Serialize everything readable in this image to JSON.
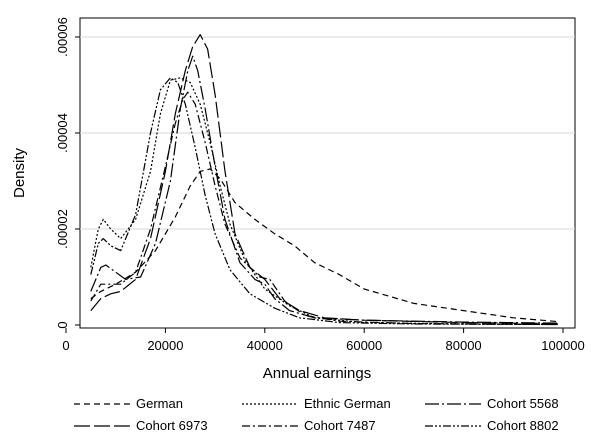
{
  "chart_data": {
    "type": "line",
    "xlabel": "Annual earnings",
    "ylabel": "Density",
    "xlim": [
      0,
      100000
    ],
    "ylim": [
      0,
      6e-05
    ],
    "x_ticks": [
      0,
      20000,
      40000,
      60000,
      80000,
      100000
    ],
    "x_tick_labels": [
      "0",
      "20000",
      "40000",
      "60000",
      "80000",
      "100000"
    ],
    "y_ticks": [
      0,
      2e-05,
      4e-05,
      6e-05
    ],
    "y_tick_labels": [
      "0",
      ".00002",
      ".00004",
      ".00006"
    ],
    "grid": true,
    "legend_position": "bottom",
    "series": [
      {
        "name": "German",
        "dash": "6,4",
        "points": [
          [
            5000,
            5.5e-06
          ],
          [
            7000,
            7e-06
          ],
          [
            10000,
            8.5e-06
          ],
          [
            14000,
            1.1e-05
          ],
          [
            18000,
            1.55e-05
          ],
          [
            22000,
            2.25e-05
          ],
          [
            25000,
            2.9e-05
          ],
          [
            27000,
            3.2e-05
          ],
          [
            29000,
            3.25e-05
          ],
          [
            31000,
            3.05e-05
          ],
          [
            34000,
            2.55e-05
          ],
          [
            38000,
            2.2e-05
          ],
          [
            42000,
            1.9e-05
          ],
          [
            46000,
            1.65e-05
          ],
          [
            50000,
            1.3e-05
          ],
          [
            55000,
            1.05e-05
          ],
          [
            60000,
            7.5e-06
          ],
          [
            70000,
            4.5e-06
          ],
          [
            80000,
            3e-06
          ],
          [
            90000,
            1.5e-06
          ],
          [
            99000,
            7e-07
          ]
        ]
      },
      {
        "name": "Ethnic German",
        "dash": "2,2",
        "points": [
          [
            5000,
            1.2e-05
          ],
          [
            6500,
            2e-05
          ],
          [
            7500,
            2.2e-05
          ],
          [
            9000,
            2e-05
          ],
          [
            11000,
            1.8e-05
          ],
          [
            14000,
            2.2e-05
          ],
          [
            17000,
            3.2e-05
          ],
          [
            19000,
            4.4e-05
          ],
          [
            21000,
            5.1e-05
          ],
          [
            23000,
            5.15e-05
          ],
          [
            25000,
            5.05e-05
          ],
          [
            27000,
            4.6e-05
          ],
          [
            29000,
            3.8e-05
          ],
          [
            31000,
            2.9e-05
          ],
          [
            33000,
            2.1e-05
          ],
          [
            36000,
            1.35e-05
          ],
          [
            40000,
            7.5e-06
          ],
          [
            45000,
            4e-06
          ],
          [
            50000,
            1.5e-06
          ],
          [
            60000,
            5e-07
          ],
          [
            80000,
            2e-07
          ],
          [
            99000,
            1e-07
          ]
        ]
      },
      {
        "name": "Cohort 5568",
        "dash": "14,3,2,3",
        "points": [
          [
            5000,
            7e-06
          ],
          [
            7000,
            1.2e-05
          ],
          [
            8000,
            1.25e-05
          ],
          [
            10000,
            1.1e-05
          ],
          [
            12000,
            9.5e-06
          ],
          [
            15000,
            1e-05
          ],
          [
            18000,
            1.7e-05
          ],
          [
            21000,
            3e-05
          ],
          [
            23000,
            4.5e-05
          ],
          [
            24500,
            5.3e-05
          ],
          [
            25500,
            5.6e-05
          ],
          [
            26500,
            5.3e-05
          ],
          [
            28000,
            4.5e-05
          ],
          [
            30000,
            3.3e-05
          ],
          [
            32000,
            2.2e-05
          ],
          [
            35000,
            1.3e-05
          ],
          [
            38000,
            9.5e-06
          ],
          [
            40000,
            8.5e-06
          ],
          [
            42000,
            5.5e-06
          ],
          [
            45000,
            3e-06
          ],
          [
            50000,
            1.5e-06
          ],
          [
            60000,
            1e-06
          ],
          [
            80000,
            6e-07
          ],
          [
            99000,
            4e-07
          ]
        ]
      },
      {
        "name": "Cohort 6973",
        "dash": "16,4",
        "points": [
          [
            5000,
            3e-06
          ],
          [
            7000,
            5.5e-06
          ],
          [
            9000,
            6.5e-06
          ],
          [
            11000,
            7e-06
          ],
          [
            14000,
            9.5e-06
          ],
          [
            17000,
            1.8e-05
          ],
          [
            20000,
            3.2e-05
          ],
          [
            22000,
            4.4e-05
          ],
          [
            24000,
            5.3e-05
          ],
          [
            25500,
            5.8e-05
          ],
          [
            27000,
            6.05e-05
          ],
          [
            28500,
            5.75e-05
          ],
          [
            30000,
            4.8e-05
          ],
          [
            32000,
            3.2e-05
          ],
          [
            34000,
            1.9e-05
          ],
          [
            37000,
            1.2e-05
          ],
          [
            40000,
            9.5e-06
          ],
          [
            43000,
            5.5e-06
          ],
          [
            47000,
            3e-06
          ],
          [
            52000,
            1.5e-06
          ],
          [
            60000,
            1e-06
          ],
          [
            80000,
            5e-07
          ],
          [
            99000,
            3e-07
          ]
        ]
      },
      {
        "name": "Cohort 7487",
        "dash": "8,3,2,3",
        "points": [
          [
            5000,
            5e-06
          ],
          [
            7000,
            8.5e-06
          ],
          [
            9000,
            8.5e-06
          ],
          [
            11000,
            8.5e-06
          ],
          [
            14000,
            1.1e-05
          ],
          [
            17000,
            2e-05
          ],
          [
            20000,
            3.3e-05
          ],
          [
            22000,
            4.2e-05
          ],
          [
            23500,
            4.7e-05
          ],
          [
            24500,
            4.85e-05
          ],
          [
            26000,
            4.6e-05
          ],
          [
            28000,
            3.8e-05
          ],
          [
            30000,
            2.9e-05
          ],
          [
            32000,
            2.1e-05
          ],
          [
            35000,
            1.4e-05
          ],
          [
            39000,
            1e-05
          ],
          [
            41000,
            9.5e-06
          ],
          [
            44000,
            5e-06
          ],
          [
            48000,
            2e-06
          ],
          [
            55000,
            8e-07
          ],
          [
            70000,
            3e-07
          ],
          [
            99000,
            1e-07
          ]
        ]
      },
      {
        "name": "Cohort 8802",
        "dash": "8,2,2,2,2,2",
        "points": [
          [
            5000,
            1.05e-05
          ],
          [
            6500,
            1.7e-05
          ],
          [
            7500,
            1.8e-05
          ],
          [
            9000,
            1.65e-05
          ],
          [
            11000,
            1.55e-05
          ],
          [
            14000,
            2.3e-05
          ],
          [
            17000,
            4e-05
          ],
          [
            19000,
            4.9e-05
          ],
          [
            21000,
            5.15e-05
          ],
          [
            22500,
            5.05e-05
          ],
          [
            24000,
            4.6e-05
          ],
          [
            26000,
            3.7e-05
          ],
          [
            28000,
            2.7e-05
          ],
          [
            30000,
            1.9e-05
          ],
          [
            33000,
            1.15e-05
          ],
          [
            37000,
            6.5e-06
          ],
          [
            42000,
            3.5e-06
          ],
          [
            47000,
            1.5e-06
          ],
          [
            55000,
            5e-07
          ],
          [
            70000,
            2e-07
          ],
          [
            99000,
            1e-07
          ]
        ]
      }
    ]
  }
}
